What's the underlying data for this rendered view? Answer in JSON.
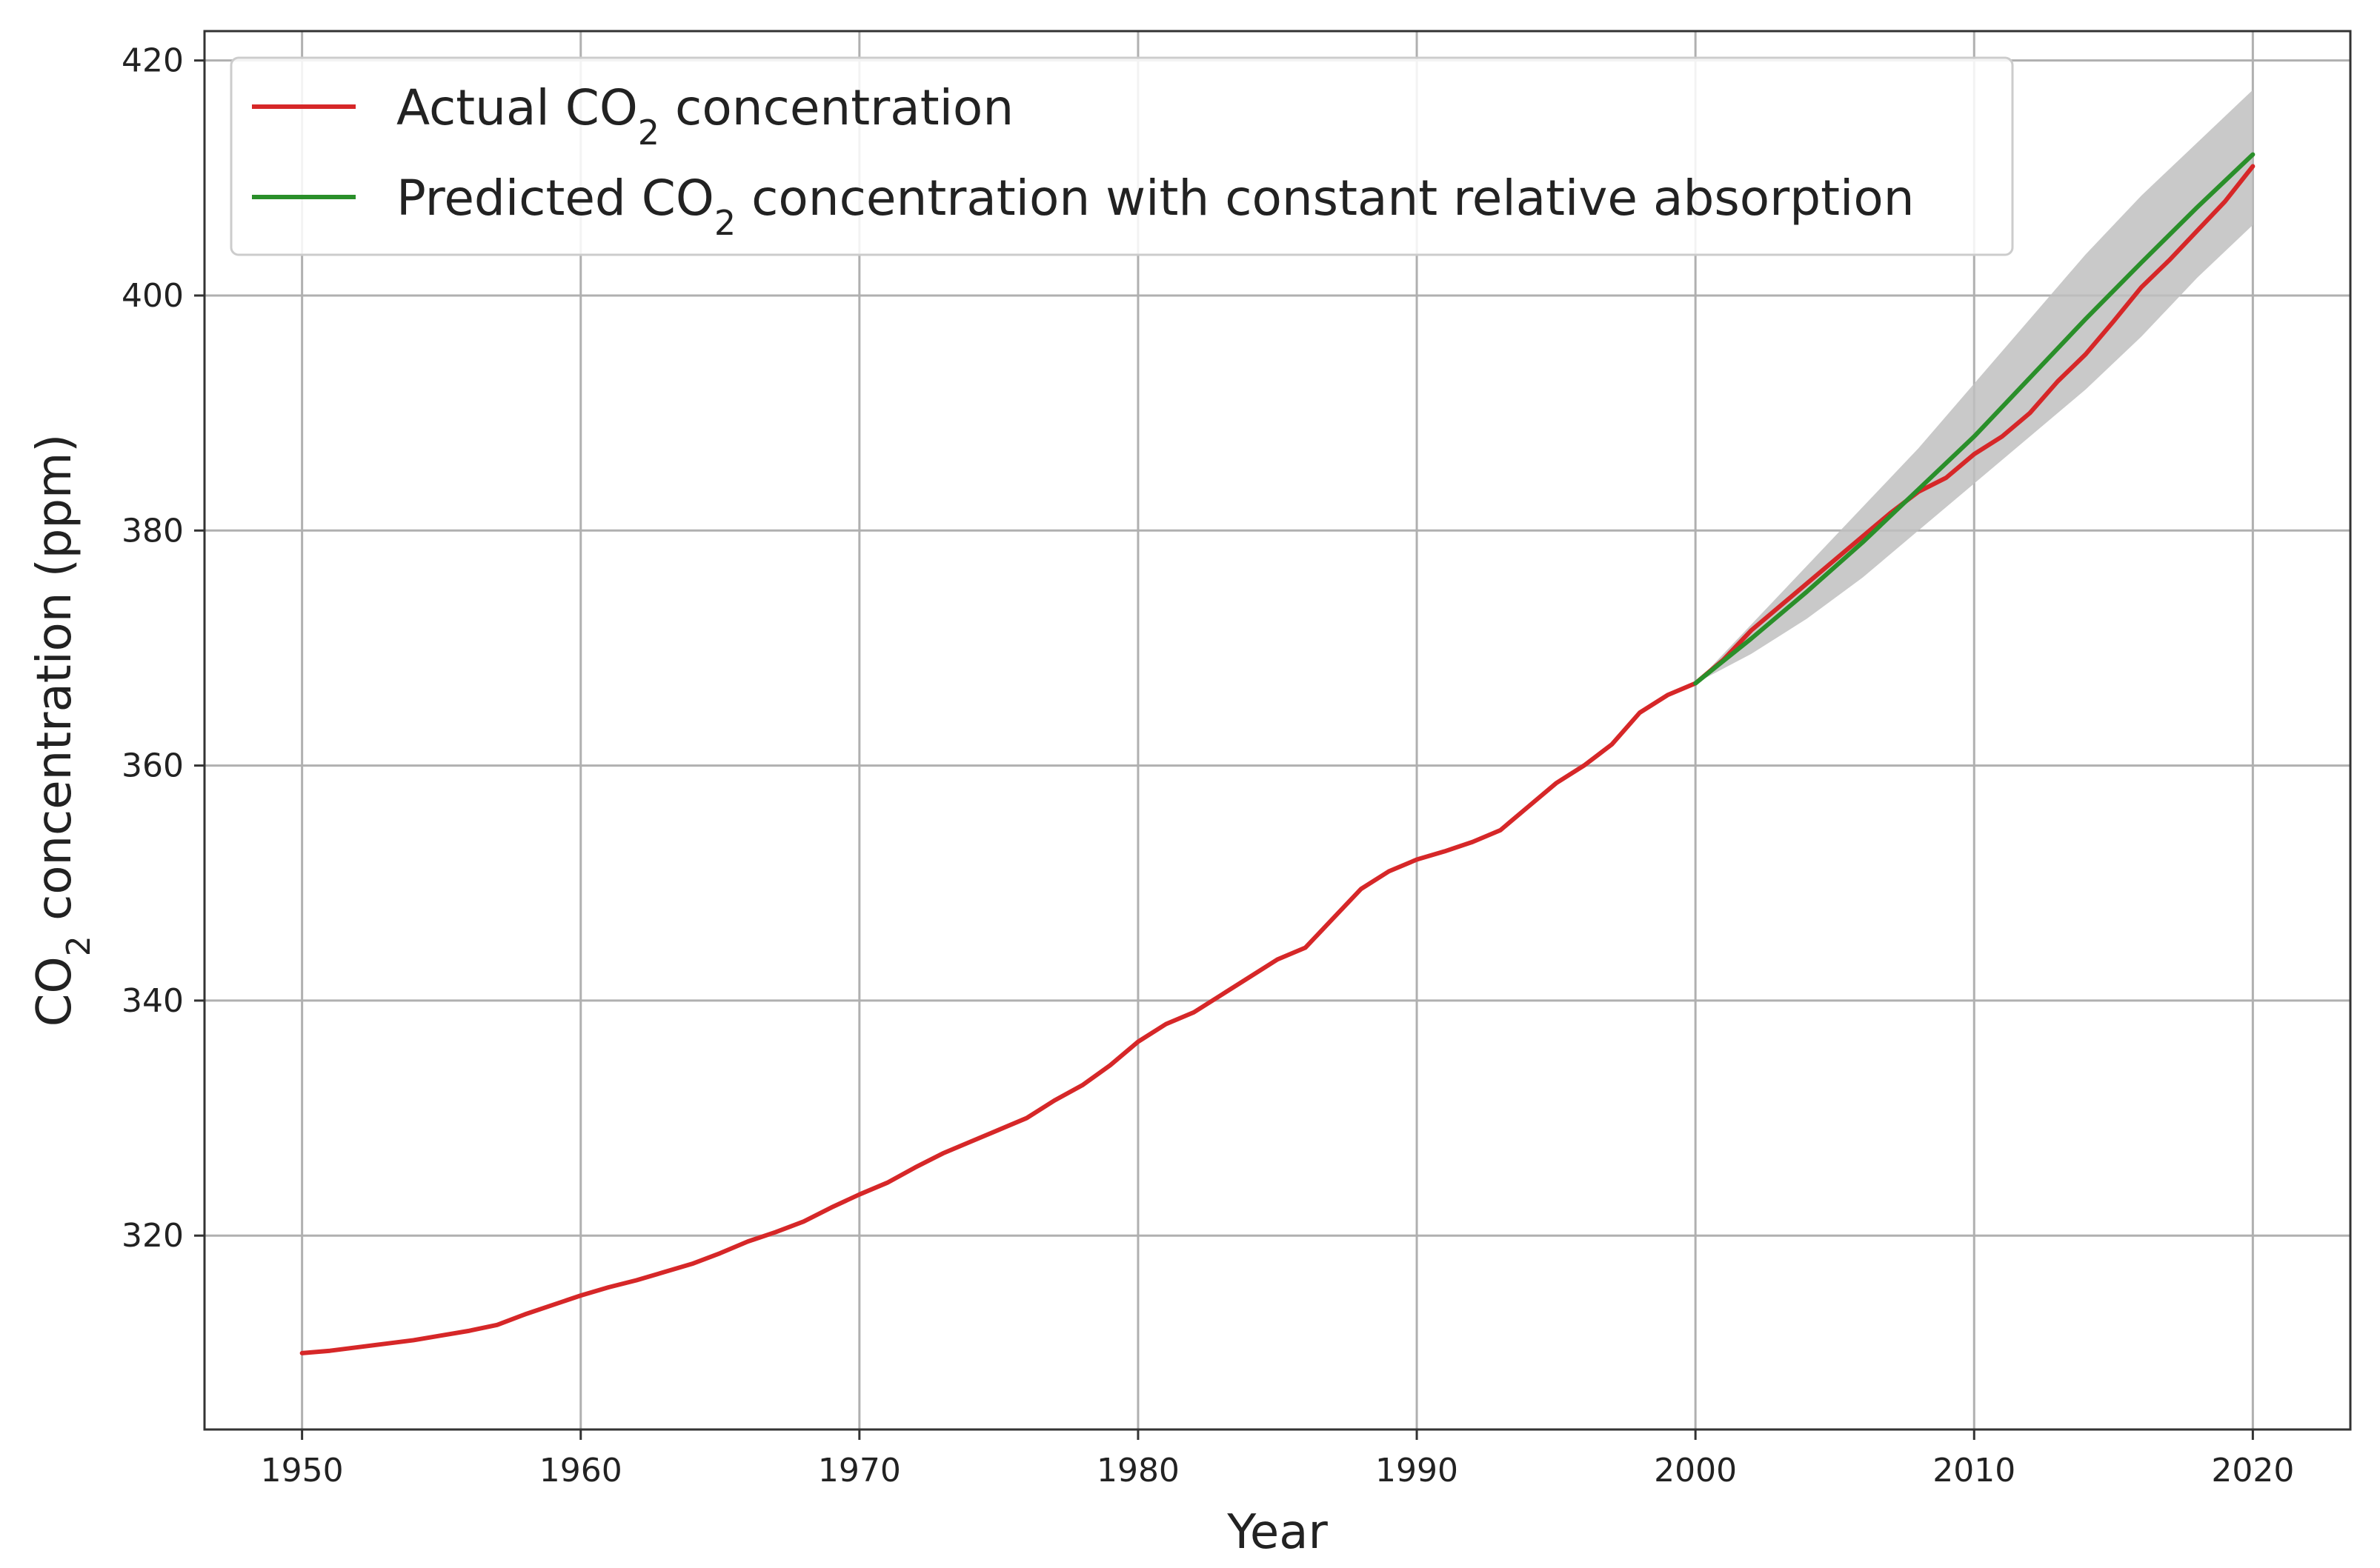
{
  "chart_data": {
    "type": "line",
    "xlabel": "Year",
    "ylabel": "CO",
    "ylabel_sub": "2",
    "ylabel_rest": " concentration (ppm)",
    "xlim": [
      1946.5,
      2023.5
    ],
    "ylim": [
      303.5,
      422.5
    ],
    "x_ticks": [
      1950,
      1960,
      1970,
      1980,
      1990,
      2000,
      2010,
      2020
    ],
    "y_ticks": [
      320,
      340,
      360,
      380,
      400,
      420
    ],
    "grid": true,
    "legend": {
      "placement": "top-left",
      "entries": [
        {
          "series": 0,
          "pre": "Actual CO",
          "sub": "2",
          "post": " concentration"
        },
        {
          "series": 1,
          "pre": "Predicted CO",
          "sub": "2",
          "post": " concentration with constant relative absorption"
        }
      ]
    },
    "series": [
      {
        "name": "Actual CO2 concentration",
        "color": "#d62728",
        "x": [
          1950,
          1951,
          1952,
          1953,
          1954,
          1955,
          1956,
          1957,
          1958,
          1959,
          1960,
          1961,
          1962,
          1963,
          1964,
          1965,
          1966,
          1967,
          1968,
          1969,
          1970,
          1971,
          1972,
          1973,
          1974,
          1975,
          1976,
          1977,
          1978,
          1979,
          1980,
          1981,
          1982,
          1983,
          1984,
          1985,
          1986,
          1987,
          1988,
          1989,
          1990,
          1991,
          1992,
          1993,
          1994,
          1995,
          1996,
          1997,
          1998,
          1999,
          2000,
          2001,
          2002,
          2003,
          2004,
          2005,
          2006,
          2007,
          2008,
          2009,
          2010,
          2011,
          2012,
          2013,
          2014,
          2015,
          2016,
          2017,
          2018,
          2019,
          2020
        ],
        "y": [
          310.0,
          310.2,
          310.5,
          310.8,
          311.1,
          311.5,
          311.9,
          312.4,
          313.3,
          314.1,
          314.9,
          315.6,
          316.2,
          316.9,
          317.6,
          318.5,
          319.5,
          320.3,
          321.2,
          322.4,
          323.5,
          324.5,
          325.8,
          327.0,
          328.0,
          329.0,
          330.0,
          331.5,
          332.8,
          334.5,
          336.5,
          338.0,
          339.0,
          340.5,
          342.0,
          343.5,
          344.5,
          347.0,
          349.5,
          351.0,
          352.0,
          352.7,
          353.5,
          354.5,
          356.5,
          358.5,
          360.0,
          361.8,
          364.5,
          366.0,
          367.0,
          369.0,
          371.5,
          373.5,
          375.5,
          377.5,
          379.5,
          381.5,
          383.3,
          384.5,
          386.5,
          388.0,
          390.0,
          392.7,
          395.0,
          397.8,
          400.7,
          403.0,
          405.5,
          408.0,
          411.0
        ]
      },
      {
        "name": "Predicted CO2 concentration with constant relative absorption",
        "color": "#2a8f2a",
        "x": [
          2000,
          2002,
          2004,
          2006,
          2008,
          2010,
          2012,
          2014,
          2016,
          2018,
          2020
        ],
        "y": [
          367.0,
          370.8,
          374.8,
          379.0,
          383.5,
          388.0,
          393.0,
          398.0,
          402.8,
          407.5,
          412.0
        ]
      }
    ],
    "band": {
      "color": "#c0c0c0",
      "x": [
        2000,
        2002,
        2004,
        2006,
        2008,
        2010,
        2012,
        2014,
        2016,
        2018,
        2020
      ],
      "lower": [
        367.0,
        369.5,
        372.5,
        376.0,
        380.0,
        384.0,
        388.0,
        392.0,
        396.5,
        401.5,
        406.0
      ],
      "upper": [
        367.0,
        372.0,
        377.0,
        382.0,
        387.0,
        392.5,
        398.0,
        403.5,
        408.5,
        413.0,
        417.5
      ]
    }
  }
}
